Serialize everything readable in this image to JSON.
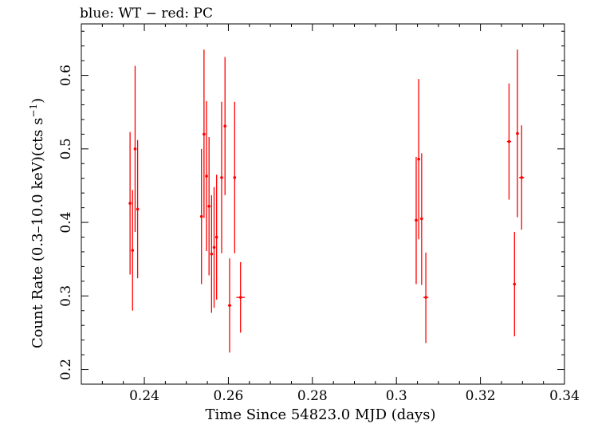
{
  "chart_data": {
    "type": "scatter",
    "title": "blue: WT − red: PC",
    "xlabel": "Time Since 54823.0 MJD (days)",
    "ylabel_main": "Count Rate (0.3–10.0 keV)(cts s",
    "ylabel_sup": "−1",
    "ylabel_close": ")",
    "xlim": [
      0.225,
      0.34
    ],
    "ylim": [
      0.18,
      0.67
    ],
    "xticks": [
      {
        "value": 0.24,
        "label": "0.24"
      },
      {
        "value": 0.26,
        "label": "0.26"
      },
      {
        "value": 0.28,
        "label": "0.28"
      },
      {
        "value": 0.3,
        "label": "0.3"
      },
      {
        "value": 0.32,
        "label": "0.32"
      },
      {
        "value": 0.34,
        "label": "0.34"
      }
    ],
    "yticks": [
      {
        "value": 0.2,
        "label": "0.2"
      },
      {
        "value": 0.3,
        "label": "0.3"
      },
      {
        "value": 0.4,
        "label": "0.4"
      },
      {
        "value": 0.5,
        "label": "0.5"
      },
      {
        "value": 0.6,
        "label": "0.6"
      }
    ],
    "grid": false,
    "series": [
      {
        "name": "PC",
        "color": "#ff0000",
        "points": [
          {
            "x": 0.2366,
            "y": 0.426,
            "ylo": 0.329,
            "yhi": 0.523,
            "xlo": 0.2363,
            "xhi": 0.2369
          },
          {
            "x": 0.2372,
            "y": 0.362,
            "ylo": 0.28,
            "yhi": 0.444,
            "xlo": 0.2369,
            "xhi": 0.2375
          },
          {
            "x": 0.2378,
            "y": 0.5,
            "ylo": 0.387,
            "yhi": 0.613,
            "xlo": 0.2375,
            "xhi": 0.2381
          },
          {
            "x": 0.2384,
            "y": 0.418,
            "ylo": 0.324,
            "yhi": 0.512,
            "xlo": 0.2381,
            "xhi": 0.2387
          },
          {
            "x": 0.2536,
            "y": 0.408,
            "ylo": 0.316,
            "yhi": 0.5,
            "xlo": 0.2533,
            "xhi": 0.2539
          },
          {
            "x": 0.2542,
            "y": 0.52,
            "ylo": 0.406,
            "yhi": 0.635,
            "xlo": 0.2539,
            "xhi": 0.2545
          },
          {
            "x": 0.2548,
            "y": 0.463,
            "ylo": 0.361,
            "yhi": 0.565,
            "xlo": 0.2545,
            "xhi": 0.2551
          },
          {
            "x": 0.2554,
            "y": 0.422,
            "ylo": 0.328,
            "yhi": 0.516,
            "xlo": 0.2551,
            "xhi": 0.2557
          },
          {
            "x": 0.256,
            "y": 0.357,
            "ylo": 0.277,
            "yhi": 0.437,
            "xlo": 0.2557,
            "xhi": 0.2563
          },
          {
            "x": 0.2566,
            "y": 0.366,
            "ylo": 0.284,
            "yhi": 0.448,
            "xlo": 0.2563,
            "xhi": 0.2569
          },
          {
            "x": 0.2572,
            "y": 0.38,
            "ylo": 0.295,
            "yhi": 0.465,
            "xlo": 0.2569,
            "xhi": 0.2575
          },
          {
            "x": 0.2584,
            "y": 0.461,
            "ylo": 0.358,
            "yhi": 0.564,
            "xlo": 0.2581,
            "xhi": 0.2587
          },
          {
            "x": 0.2592,
            "y": 0.531,
            "ylo": 0.437,
            "yhi": 0.625,
            "xlo": 0.2589,
            "xhi": 0.2595
          },
          {
            "x": 0.2603,
            "y": 0.287,
            "ylo": 0.223,
            "yhi": 0.351,
            "xlo": 0.2599,
            "xhi": 0.2607
          },
          {
            "x": 0.2615,
            "y": 0.461,
            "ylo": 0.358,
            "yhi": 0.564,
            "xlo": 0.2612,
            "xhi": 0.2618
          },
          {
            "x": 0.2629,
            "y": 0.298,
            "ylo": 0.25,
            "yhi": 0.346,
            "xlo": 0.2619,
            "xhi": 0.2639
          },
          {
            "x": 0.3047,
            "y": 0.403,
            "ylo": 0.316,
            "yhi": 0.489,
            "xlo": 0.3044,
            "xhi": 0.305
          },
          {
            "x": 0.3053,
            "y": 0.486,
            "ylo": 0.377,
            "yhi": 0.595,
            "xlo": 0.305,
            "xhi": 0.3056
          },
          {
            "x": 0.306,
            "y": 0.405,
            "ylo": 0.315,
            "yhi": 0.494,
            "xlo": 0.3057,
            "xhi": 0.3063
          },
          {
            "x": 0.307,
            "y": 0.298,
            "ylo": 0.236,
            "yhi": 0.359,
            "xlo": 0.3064,
            "xhi": 0.3076
          },
          {
            "x": 0.3268,
            "y": 0.51,
            "ylo": 0.431,
            "yhi": 0.589,
            "xlo": 0.3263,
            "xhi": 0.3273
          },
          {
            "x": 0.3281,
            "y": 0.316,
            "ylo": 0.245,
            "yhi": 0.387,
            "xlo": 0.3278,
            "xhi": 0.3284
          },
          {
            "x": 0.3288,
            "y": 0.521,
            "ylo": 0.407,
            "yhi": 0.635,
            "xlo": 0.3285,
            "xhi": 0.3291
          },
          {
            "x": 0.3298,
            "y": 0.461,
            "ylo": 0.39,
            "yhi": 0.532,
            "xlo": 0.3292,
            "xhi": 0.3304
          }
        ]
      }
    ]
  }
}
